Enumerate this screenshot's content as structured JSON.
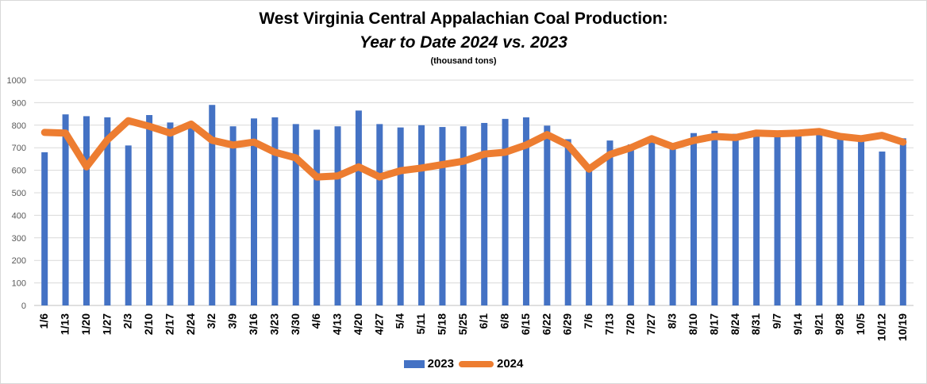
{
  "chart_data": {
    "type": "bar",
    "title_line1": "West Virginia Central Appalachian Coal Production:",
    "title_line2": "Year to Date 2024 vs. 2023",
    "subtitle": "(thousand tons)",
    "ylim": [
      0,
      1000
    ],
    "yticks": [
      0,
      100,
      200,
      300,
      400,
      500,
      600,
      700,
      800,
      900,
      1000
    ],
    "grid": true,
    "legend_position": "bottom",
    "categories": [
      "1/6",
      "1/13",
      "1/20",
      "1/27",
      "2/3",
      "2/10",
      "2/17",
      "2/24",
      "3/2",
      "3/9",
      "3/16",
      "3/23",
      "3/30",
      "4/6",
      "4/13",
      "4/20",
      "4/27",
      "5/4",
      "5/11",
      "5/18",
      "5/25",
      "6/1",
      "6/8",
      "6/15",
      "6/22",
      "6/29",
      "7/6",
      "7/13",
      "7/20",
      "7/27",
      "8/3",
      "8/10",
      "8/17",
      "8/24",
      "8/31",
      "9/7",
      "9/14",
      "9/21",
      "9/28",
      "10/5",
      "10/12",
      "10/19"
    ],
    "series": [
      {
        "name": "2023",
        "type": "bar",
        "color": "#4472C4",
        "values": [
          680,
          848,
          840,
          835,
          710,
          845,
          812,
          790,
          890,
          795,
          830,
          835,
          805,
          780,
          795,
          865,
          805,
          790,
          800,
          792,
          795,
          810,
          828,
          835,
          798,
          738,
          600,
          732,
          715,
          728,
          702,
          765,
          775,
          762,
          755,
          758,
          762,
          760,
          752,
          745,
          683,
          742
        ]
      },
      {
        "name": "2024",
        "type": "line",
        "color": "#ED7D31",
        "values": [
          768,
          765,
          615,
          735,
          820,
          795,
          765,
          805,
          733,
          712,
          725,
          680,
          655,
          570,
          575,
          615,
          570,
          598,
          610,
          625,
          640,
          672,
          680,
          712,
          758,
          712,
          605,
          670,
          700,
          740,
          705,
          732,
          750,
          745,
          765,
          762,
          765,
          772,
          750,
          740,
          755,
          725
        ]
      }
    ]
  }
}
